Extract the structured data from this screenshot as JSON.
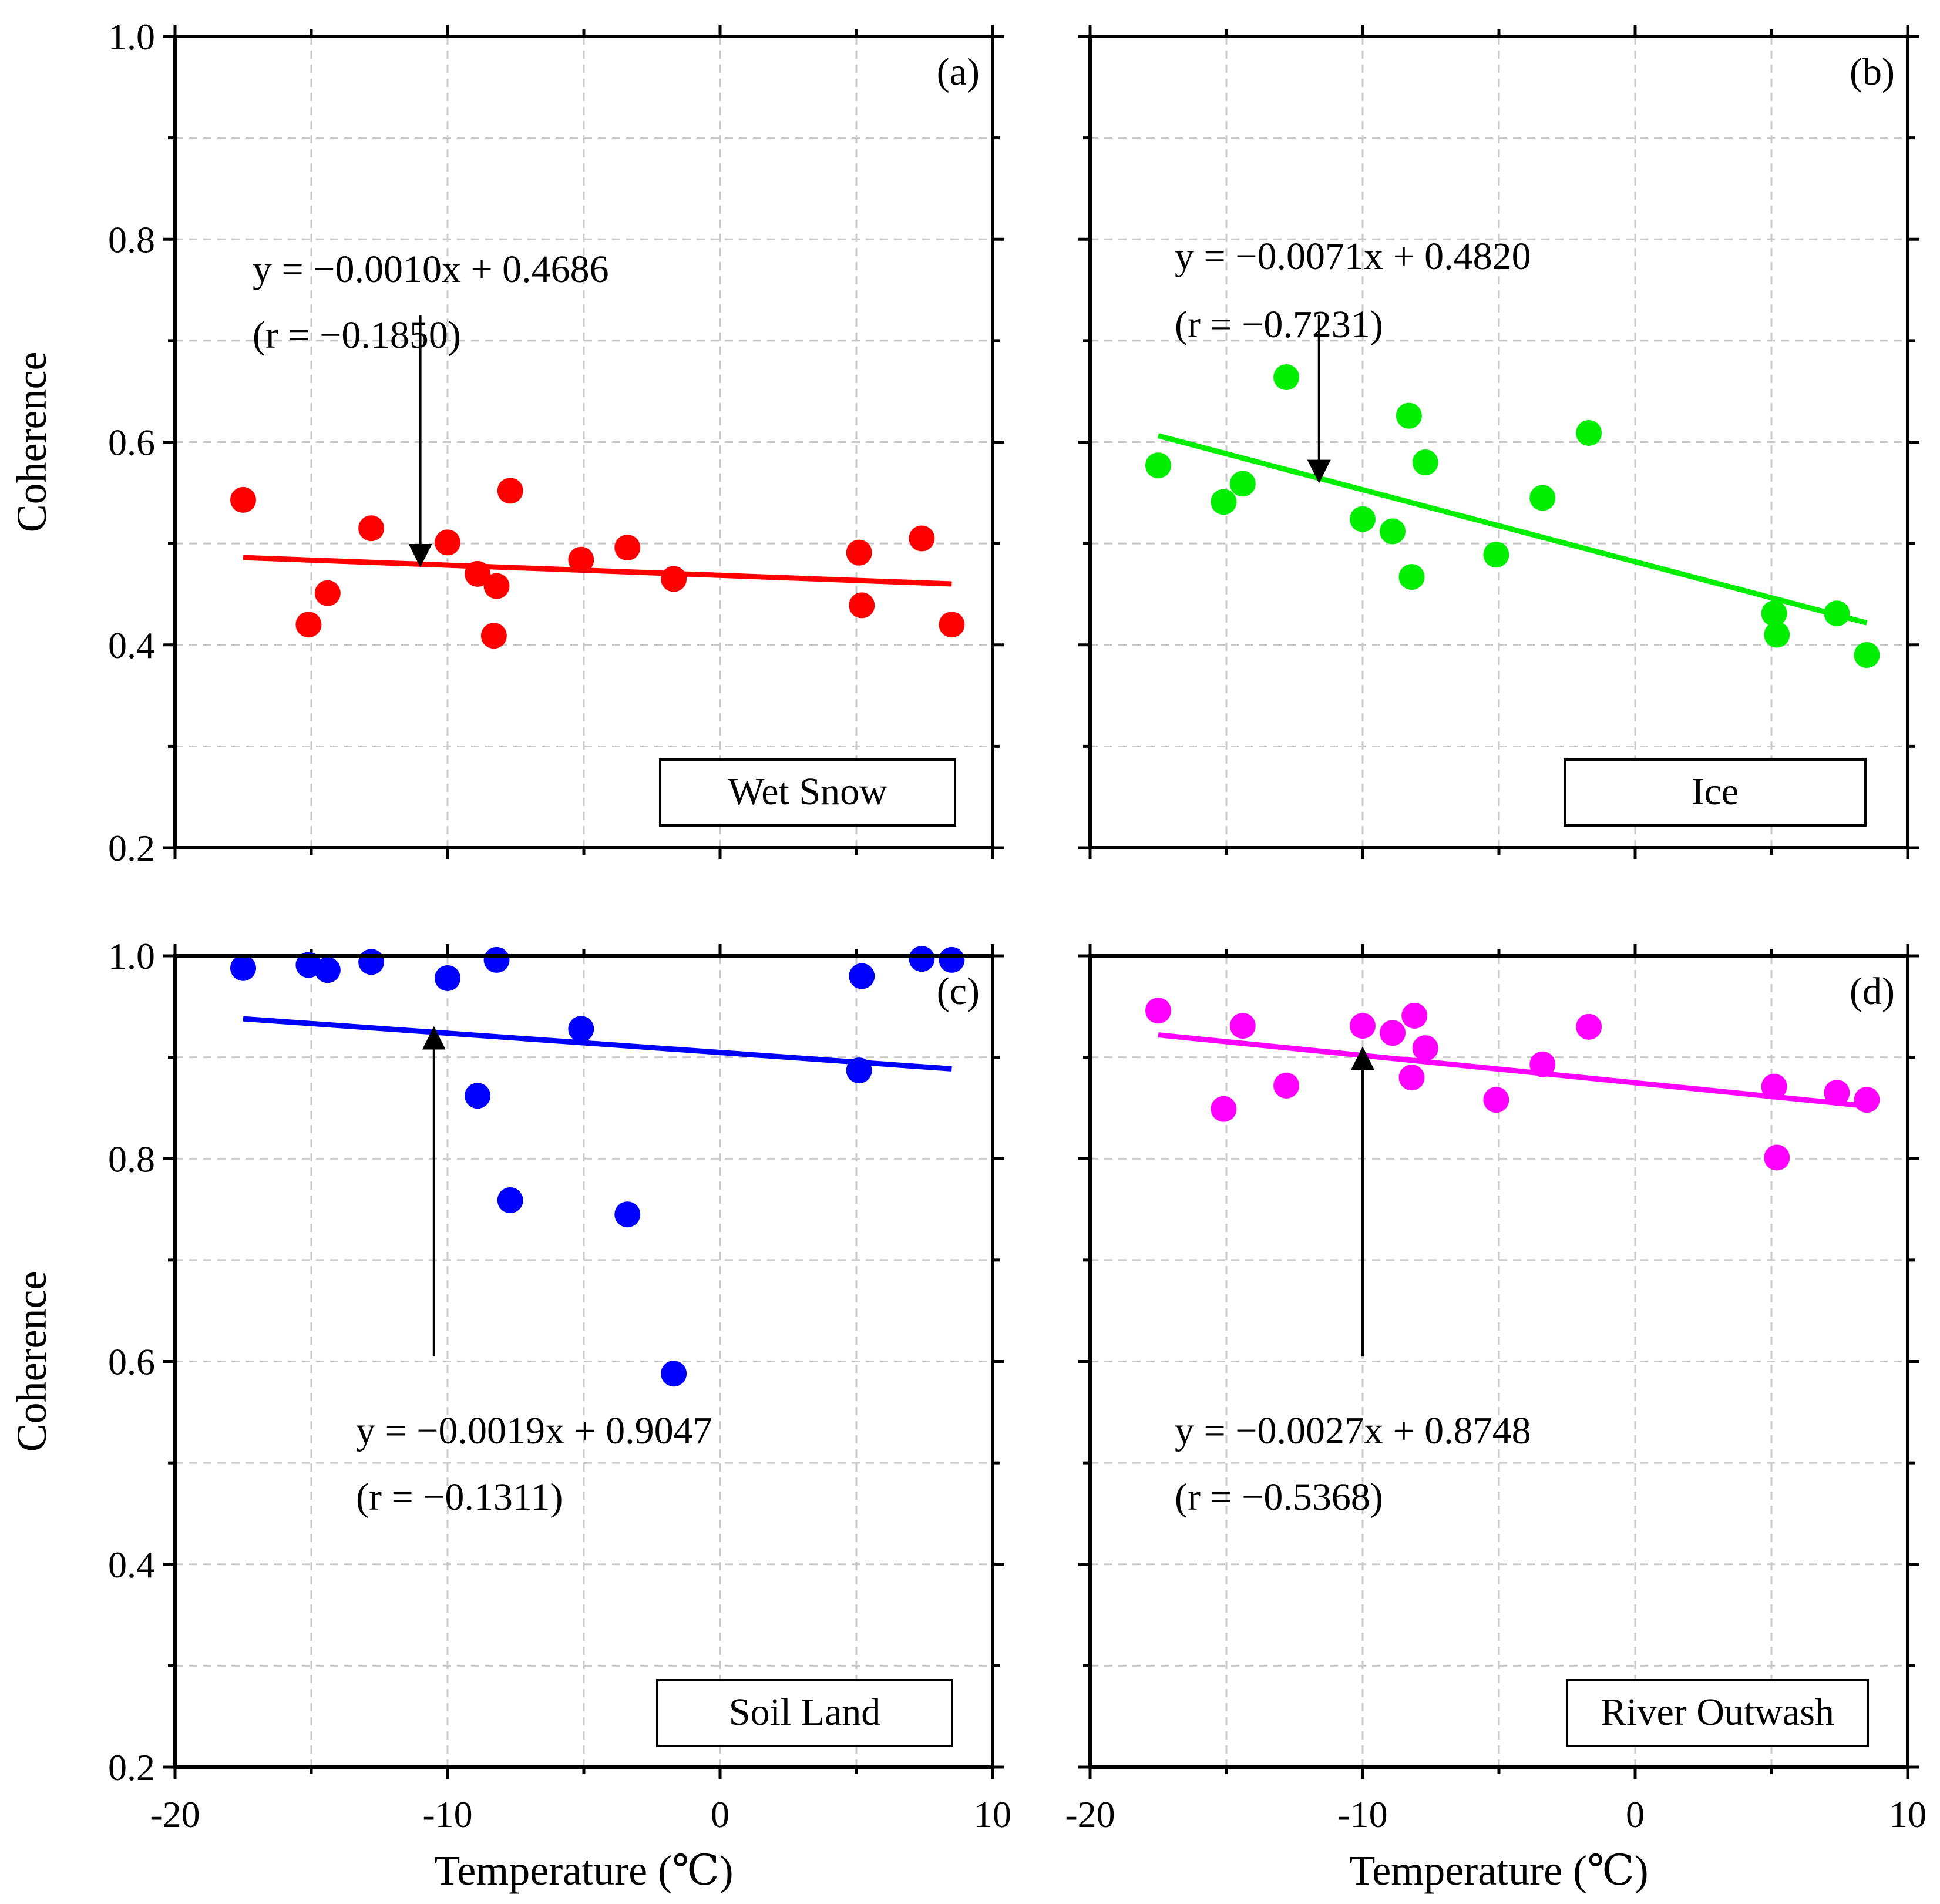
{
  "chart_data": [
    {
      "type": "scatter",
      "panel_label": "(a)",
      "legend": "Wet Snow",
      "color": "#ff0000",
      "xlabel": "",
      "ylabel": "Coherence",
      "xlim": [
        -20,
        10
      ],
      "ylim": [
        0.2,
        1.0
      ],
      "xticks": [
        "-20",
        "-10",
        "0",
        "10"
      ],
      "yticks": [
        "0.2",
        "0.4",
        "0.6",
        "0.8",
        "1.0"
      ],
      "grid": true,
      "x": [
        -17.5,
        -15.1,
        -14.4,
        -12.8,
        -10.0,
        -8.9,
        -8.3,
        -8.2,
        -7.7,
        -5.1,
        -3.4,
        -1.7,
        5.1,
        5.2,
        7.4,
        8.5
      ],
      "y": [
        0.543,
        0.42,
        0.451,
        0.515,
        0.501,
        0.47,
        0.409,
        0.458,
        0.552,
        0.484,
        0.496,
        0.465,
        0.491,
        0.439,
        0.505,
        0.42
      ],
      "fit": {
        "slope": -0.001,
        "intercept": 0.4686,
        "x_range": [
          -17.5,
          8.5
        ]
      },
      "equation_text": "y = −0.0010x + 0.4686",
      "r_text": "(r = −0.1850)",
      "arrow": {
        "from": [
          -11.0,
          0.725
        ],
        "to": [
          -11.0,
          0.481
        ]
      }
    },
    {
      "type": "scatter",
      "panel_label": "(b)",
      "legend": "Ice",
      "color": "#00ee00",
      "xlabel": "",
      "ylabel": "",
      "xlim": [
        -20,
        10
      ],
      "ylim": [
        0.2,
        1.0
      ],
      "xticks": [
        "-20",
        "-10",
        "0",
        "10"
      ],
      "yticks": [
        "0.2",
        "0.4",
        "0.6",
        "0.8",
        "1.0"
      ],
      "grid": true,
      "x": [
        -17.5,
        -15.1,
        -14.4,
        -12.8,
        -10.0,
        -8.9,
        -8.3,
        -8.2,
        -7.7,
        -5.1,
        -3.4,
        -1.7,
        5.1,
        5.2,
        7.4,
        8.5
      ],
      "y": [
        0.577,
        0.541,
        0.559,
        0.664,
        0.524,
        0.512,
        0.626,
        0.467,
        0.58,
        0.489,
        0.545,
        0.609,
        0.431,
        0.41,
        0.431,
        0.39
      ],
      "fit": {
        "slope": -0.0071,
        "intercept": 0.482,
        "x_range": [
          -17.5,
          8.5
        ]
      },
      "equation_text": "y = −0.0071x + 0.4820",
      "r_text": "(r = −0.7231)",
      "arrow": {
        "from": [
          -11.6,
          0.725
        ],
        "to": [
          -11.6,
          0.564
        ]
      }
    },
    {
      "type": "scatter",
      "panel_label": "(c)",
      "legend": "Soil Land",
      "color": "#0000ff",
      "xlabel": "Temperature (℃)",
      "ylabel": "Coherence",
      "xlim": [
        -20,
        10
      ],
      "ylim": [
        0.2,
        1.0
      ],
      "xticks": [
        "-20",
        "-10",
        "0",
        "10"
      ],
      "yticks": [
        "0.2",
        "0.4",
        "0.6",
        "0.8",
        "1.0"
      ],
      "grid": true,
      "x": [
        -17.5,
        -15.1,
        -14.4,
        -12.8,
        -10.0,
        -8.9,
        -8.2,
        -7.7,
        -5.1,
        -3.4,
        -1.7,
        5.2,
        5.1,
        7.4,
        8.5
      ],
      "y": [
        0.988,
        0.991,
        0.986,
        0.994,
        0.978,
        0.862,
        0.996,
        0.759,
        0.928,
        0.745,
        0.588,
        0.98,
        0.887,
        0.997,
        0.996
      ],
      "fit": {
        "slope": -0.0019,
        "intercept": 0.9047,
        "x_range": [
          -17.5,
          8.5
        ]
      },
      "equation_text": "y = −0.0019x + 0.9047",
      "r_text": "(r = −0.1311)",
      "arrow": {
        "from": [
          -10.5,
          0.605
        ],
        "to": [
          -10.5,
          0.926
        ]
      }
    },
    {
      "type": "scatter",
      "panel_label": "(d)",
      "legend": "River Outwash",
      "color": "#ff00ff",
      "xlabel": "Temperature (℃)",
      "ylabel": "",
      "xlim": [
        -20,
        10
      ],
      "ylim": [
        0.2,
        1.0
      ],
      "xticks": [
        "-20",
        "-10",
        "0",
        "10"
      ],
      "yticks": [
        "0.2",
        "0.4",
        "0.6",
        "0.8",
        "1.0"
      ],
      "grid": true,
      "x": [
        -17.5,
        -15.1,
        -14.4,
        -12.8,
        -10.0,
        -8.9,
        -8.2,
        -8.1,
        -7.7,
        -5.1,
        -3.4,
        -1.7,
        5.1,
        5.2,
        7.4,
        8.5
      ],
      "y": [
        0.946,
        0.849,
        0.931,
        0.872,
        0.931,
        0.924,
        0.88,
        0.941,
        0.909,
        0.858,
        0.893,
        0.93,
        0.871,
        0.801,
        0.865,
        0.858
      ],
      "fit": {
        "slope": -0.0027,
        "intercept": 0.8748,
        "x_range": [
          -17.5,
          8.5
        ]
      },
      "equation_text": "y = −0.0027x + 0.8748",
      "r_text": "(r = −0.5368)",
      "arrow": {
        "from": [
          -10.0,
          0.605
        ],
        "to": [
          -10.0,
          0.906
        ]
      }
    }
  ]
}
